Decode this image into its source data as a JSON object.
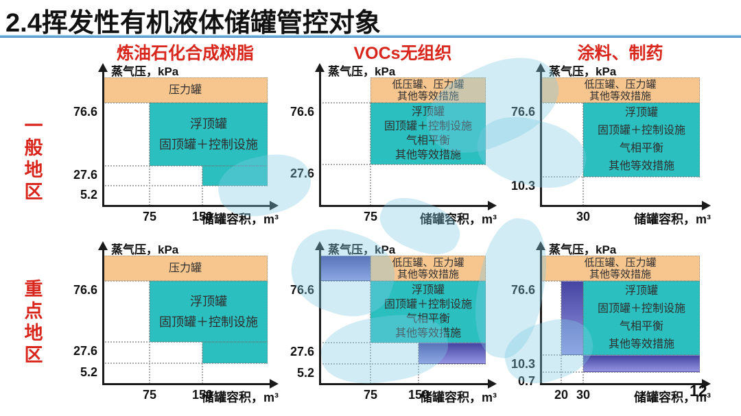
{
  "slide": {
    "title": "2.4挥发性有机液体储罐管控对象",
    "page_number": "12"
  },
  "columns": [
    {
      "label": "炼油石化合成树脂"
    },
    {
      "label": "VOCs无组织"
    },
    {
      "label": "涂料、制药"
    }
  ],
  "rows": [
    {
      "label": "一般地区"
    },
    {
      "label": "重点地区"
    }
  ],
  "axis": {
    "y_label": "蒸气压，kPa",
    "x_label": "储罐容积，m³"
  },
  "colors": {
    "teal": "#2bbfbf",
    "orange": "#f7c58e",
    "purple_top": "#4545a2",
    "purple_bottom": "#9494e2",
    "header_red": "#d9261c",
    "title_black": "#111111",
    "watermark": "#7fc9e3",
    "grid": "#ababab",
    "axis_black": "#1a1a1a"
  },
  "chart_data": [
    {
      "type": "area",
      "industry": "炼油石化合成树脂",
      "region_type": "一般地区",
      "y_label": "蒸气压，kPa",
      "x_label": "储罐容积，m³",
      "y_ticks": [
        "76.6",
        "27.6",
        "5.2"
      ],
      "x_ticks": [
        "75",
        "150"
      ],
      "zones": [
        {
          "name": "pressure-tank-zone",
          "color": "orange",
          "x": [
            "axis",
            "max"
          ],
          "y": [
            "76.6",
            "top"
          ],
          "lines": [
            "压力罐"
          ]
        },
        {
          "name": "floating-roof-zone",
          "color": "teal",
          "x": [
            "75",
            "max"
          ],
          "y": [
            "27.6",
            "76.6"
          ],
          "lines": [
            "浮顶罐",
            "固顶罐＋控制设施"
          ]
        },
        {
          "name": "floating-roof-zone-step",
          "color": "teal",
          "x": [
            "150",
            "max"
          ],
          "y": [
            "5.2",
            "27.6"
          ],
          "lines": []
        }
      ]
    },
    {
      "type": "area",
      "industry": "VOCs无组织",
      "region_type": "一般地区",
      "y_label": "蒸气压，kPa",
      "x_label": "储罐容积，m³",
      "y_ticks": [
        "76.6",
        "27.6"
      ],
      "x_ticks": [
        "75"
      ],
      "zones": [
        {
          "name": "pressure-tank-zone",
          "color": "orange",
          "x": [
            "75",
            "max"
          ],
          "y": [
            "76.6",
            "top"
          ],
          "lines": [
            "低压罐、压力罐",
            "其他等效措施"
          ]
        },
        {
          "name": "floating-roof-zone",
          "color": "teal",
          "x": [
            "75",
            "max"
          ],
          "y": [
            "27.6",
            "76.6"
          ],
          "lines": [
            "浮顶罐",
            "固顶罐＋控制设施",
            "气相平衡",
            "其他等效措施"
          ]
        }
      ]
    },
    {
      "type": "area",
      "industry": "涂料、制药",
      "region_type": "一般地区",
      "y_label": "蒸气压，kPa",
      "x_label": "储罐容积，m³",
      "y_ticks": [
        "76.6",
        "10.3"
      ],
      "x_ticks": [
        "30"
      ],
      "zones": [
        {
          "name": "pressure-tank-zone",
          "color": "orange",
          "x": [
            "axis",
            "max"
          ],
          "y": [
            "76.6",
            "top"
          ],
          "lines": [
            "低压罐、压力罐",
            "其他等效措施"
          ]
        },
        {
          "name": "floating-roof-zone",
          "color": "teal",
          "x": [
            "30",
            "max"
          ],
          "y": [
            "10.3",
            "76.6"
          ],
          "lines": [
            "浮顶罐",
            "固顶罐＋控制设施",
            "气相平衡",
            "其他等效措施"
          ]
        }
      ]
    },
    {
      "type": "area",
      "industry": "炼油石化合成树脂",
      "region_type": "重点地区",
      "y_label": "蒸气压，kPa",
      "x_label": "储罐容积，m³",
      "y_ticks": [
        "76.6",
        "27.6",
        "5.2"
      ],
      "x_ticks": [
        "75",
        "150"
      ],
      "zones": [
        {
          "name": "pressure-tank-zone",
          "color": "orange",
          "x": [
            "axis",
            "max"
          ],
          "y": [
            "76.6",
            "top"
          ],
          "lines": [
            "压力罐"
          ]
        },
        {
          "name": "floating-roof-zone",
          "color": "teal",
          "x": [
            "75",
            "max"
          ],
          "y": [
            "27.6",
            "76.6"
          ],
          "lines": [
            "浮顶罐",
            "固顶罐＋控制设施"
          ]
        },
        {
          "name": "floating-roof-zone-step",
          "color": "teal",
          "x": [
            "150",
            "max"
          ],
          "y": [
            "5.2",
            "27.6"
          ],
          "lines": []
        }
      ]
    },
    {
      "type": "area",
      "industry": "VOCs无组织",
      "region_type": "重点地区",
      "y_label": "蒸气压，kPa",
      "x_label": "储罐容积，m³",
      "y_ticks": [
        "76.6",
        "27.6",
        "5.2"
      ],
      "x_ticks": [
        "75",
        "150"
      ],
      "zones": [
        {
          "name": "enhanced-control-zone",
          "color": "purple",
          "x": [
            "axis",
            "75"
          ],
          "y": [
            "76.6",
            "top"
          ],
          "lines": []
        },
        {
          "name": "pressure-tank-zone",
          "color": "orange",
          "x": [
            "75",
            "max"
          ],
          "y": [
            "76.6",
            "top"
          ],
          "lines": [
            "低压罐、压力罐",
            "其他等效措施"
          ]
        },
        {
          "name": "floating-roof-zone",
          "color": "teal",
          "x": [
            "75",
            "max"
          ],
          "y": [
            "27.6",
            "76.6"
          ],
          "lines": [
            "浮顶罐",
            "固顶罐＋控制设施",
            "气相平衡",
            "其他等效措施"
          ]
        },
        {
          "name": "enhanced-control-zone",
          "color": "purple",
          "x": [
            "150",
            "max"
          ],
          "y": [
            "5.2",
            "27.6"
          ],
          "lines": []
        }
      ]
    },
    {
      "type": "area",
      "industry": "涂料、制药",
      "region_type": "重点地区",
      "y_label": "蒸气压，kPa",
      "x_label": "储罐容积，m³",
      "y_ticks": [
        "76.6",
        "10.3",
        "0.7"
      ],
      "x_ticks": [
        "20",
        "30"
      ],
      "zones": [
        {
          "name": "pressure-tank-zone",
          "color": "orange",
          "x": [
            "axis",
            "max"
          ],
          "y": [
            "76.6",
            "top"
          ],
          "lines": [
            "低压罐、压力罐",
            "其他等效措施"
          ]
        },
        {
          "name": "enhanced-control-zone",
          "color": "purple",
          "x": [
            "20",
            "30"
          ],
          "y": [
            "10.3",
            "76.6"
          ],
          "lines": []
        },
        {
          "name": "floating-roof-zone",
          "color": "teal",
          "x": [
            "30",
            "max"
          ],
          "y": [
            "10.3",
            "76.6"
          ],
          "lines": [
            "浮顶罐",
            "固顶罐＋控制设施",
            "气相平衡",
            "其他等效措施"
          ]
        },
        {
          "name": "enhanced-control-zone",
          "color": "purple",
          "x": [
            "30",
            "max"
          ],
          "y": [
            "0.7",
            "10.3"
          ],
          "lines": []
        }
      ]
    }
  ]
}
